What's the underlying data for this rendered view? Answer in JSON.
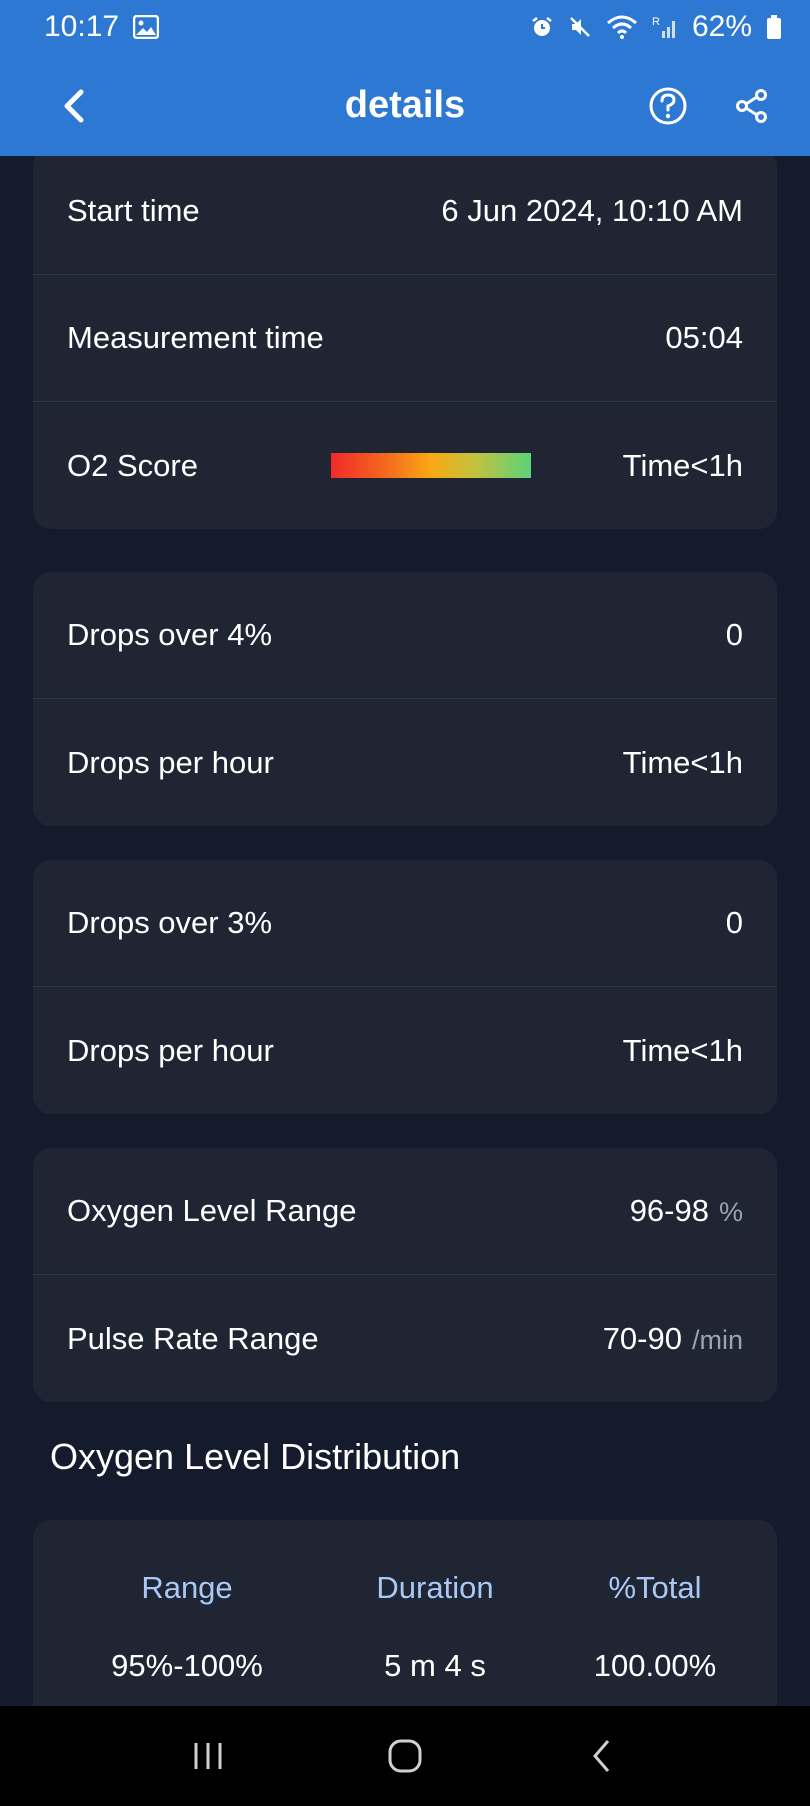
{
  "status_bar": {
    "time": "10:17",
    "battery": "62%",
    "icons": [
      "image-icon",
      "alarm-icon",
      "mute-icon",
      "wifi-icon",
      "signal-icon",
      "battery-icon"
    ]
  },
  "header": {
    "title": "details",
    "back_icon": "chevron-left-icon",
    "help_icon": "help-circle-icon",
    "share_icon": "share-icon"
  },
  "summary": {
    "start_time_label": "Start time",
    "start_time_value": "6 Jun 2024, 10:10 AM",
    "measurement_time_label": "Measurement time",
    "measurement_time_value": "05:04",
    "o2_score_label": "O2 Score",
    "o2_score_value": "Time<1h"
  },
  "drops_4": {
    "label": "Drops over 4%",
    "value": "0",
    "per_hour_label": "Drops per hour",
    "per_hour_value": "Time<1h"
  },
  "drops_3": {
    "label": "Drops over 3%",
    "value": "0",
    "per_hour_label": "Drops per hour",
    "per_hour_value": "Time<1h"
  },
  "ranges": {
    "oxygen_label": "Oxygen Level Range",
    "oxygen_value": "96-98",
    "oxygen_unit": "%",
    "pulse_label": "Pulse Rate Range",
    "pulse_value": "70-90",
    "pulse_unit": "/min"
  },
  "distribution": {
    "title": "Oxygen Level Distribution",
    "headers": [
      "Range",
      "Duration",
      "%Total"
    ],
    "rows": [
      [
        "95%-100%",
        "5 m 4 s",
        "100.00%"
      ]
    ]
  },
  "colors": {
    "app_bar": "#2d78d3",
    "background": "#141b2d",
    "card": "#1f2533",
    "table_header": "#a9c8f5"
  }
}
